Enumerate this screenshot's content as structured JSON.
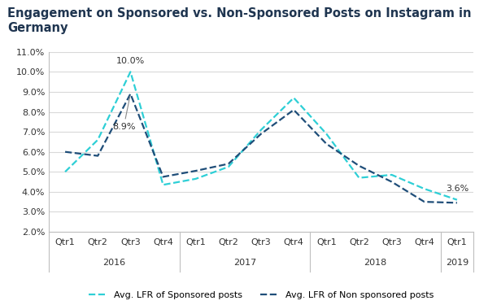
{
  "chart_data": {
    "type": "line",
    "title": "Engagement on Sponsored vs. Non-Sponsored Posts on Instagram in Germany",
    "categories": [
      "Qtr1",
      "Qtr2",
      "Qtr3",
      "Qtr4",
      "Qtr1",
      "Qtr2",
      "Qtr3",
      "Qtr4",
      "Qtr1",
      "Qtr2",
      "Qtr3",
      "Qtr4",
      "Qtr1"
    ],
    "category_groups": [
      {
        "label": "2016",
        "count": 4
      },
      {
        "label": "2017",
        "count": 4
      },
      {
        "label": "2018",
        "count": 4
      },
      {
        "label": "2019",
        "count": 1
      }
    ],
    "series": [
      {
        "name": "Avg. LFR of Sponsored posts",
        "color": "#2ecfd6",
        "line_style": "dashed",
        "values": [
          5.0,
          6.6,
          10.0,
          4.35,
          4.65,
          5.25,
          7.1,
          8.7,
          6.9,
          4.7,
          4.85,
          4.15,
          3.6
        ],
        "value_labels": [
          null,
          null,
          "10.0%",
          null,
          null,
          null,
          null,
          null,
          null,
          null,
          null,
          null,
          "3.6%"
        ]
      },
      {
        "name": "Avg. LFR of Non sponsored posts",
        "color": "#1f4e79",
        "line_style": "dashed",
        "values": [
          6.0,
          5.8,
          8.9,
          4.75,
          5.05,
          5.4,
          6.9,
          8.1,
          6.4,
          5.3,
          4.5,
          3.5,
          3.45
        ],
        "value_labels": [
          null,
          null,
          "8.9%",
          null,
          null,
          null,
          null,
          null,
          null,
          null,
          null,
          null,
          null
        ]
      }
    ],
    "ylim": [
      2.0,
      11.0
    ],
    "yticks": [
      {
        "value": 2.0,
        "label": "2.0%"
      },
      {
        "value": 3.0,
        "label": "3.0%"
      },
      {
        "value": 4.0,
        "label": "4.0%"
      },
      {
        "value": 5.0,
        "label": "5.0%"
      },
      {
        "value": 6.0,
        "label": "6.0%"
      },
      {
        "value": 7.0,
        "label": "7.0%"
      },
      {
        "value": 8.0,
        "label": "8.0%"
      },
      {
        "value": 9.0,
        "label": "9.0%"
      },
      {
        "value": 10.0,
        "label": "10.0%"
      },
      {
        "value": 11.0,
        "label": "11.0%"
      }
    ],
    "grid": true,
    "legend": "lower center"
  }
}
